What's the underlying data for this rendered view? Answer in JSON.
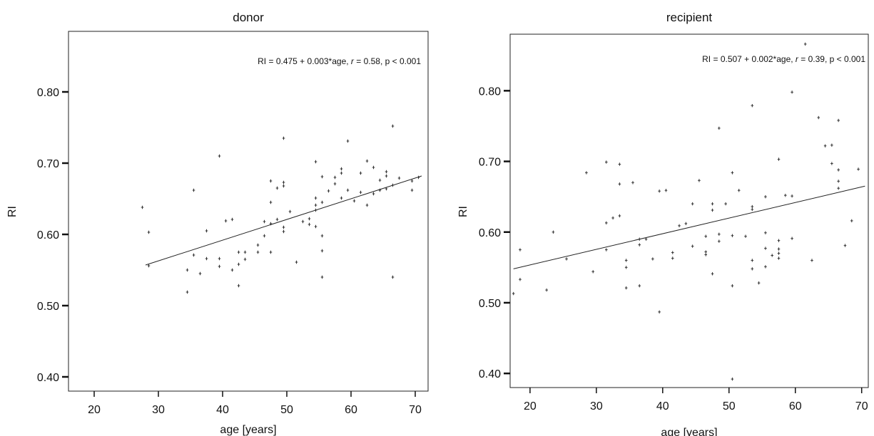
{
  "chart_data": [
    {
      "type": "scatter",
      "title": "donor",
      "xlabel": "age [years]",
      "ylabel": "RI",
      "xlim": [
        16,
        72
      ],
      "ylim": [
        0.38,
        0.885
      ],
      "xticks": [
        20,
        30,
        40,
        50,
        60,
        70
      ],
      "xtick_labels": [
        "20",
        "30",
        "40",
        "50",
        "60",
        "70"
      ],
      "yticks": [
        0.4,
        0.5,
        0.6,
        0.7,
        0.8
      ],
      "ytick_labels": [
        "0.40",
        "0.50",
        "0.60",
        "0.70",
        "0.80"
      ],
      "annotation": {
        "prefix": "RI = 0.475 + 0.003*age, ",
        "r_symbol": "r",
        "suffix": " = 0.58, p < 0.001"
      },
      "fit": {
        "x": [
          28,
          71
        ],
        "y": [
          0.557,
          0.682
        ]
      },
      "points": [
        [
          27.5,
          0.638
        ],
        [
          28.5,
          0.603
        ],
        [
          28.5,
          0.556
        ],
        [
          34.5,
          0.55
        ],
        [
          34.5,
          0.519
        ],
        [
          35.5,
          0.662
        ],
        [
          35.5,
          0.571
        ],
        [
          36.5,
          0.545
        ],
        [
          37.5,
          0.605
        ],
        [
          37.5,
          0.566
        ],
        [
          39.5,
          0.71
        ],
        [
          39.5,
          0.566
        ],
        [
          39.5,
          0.555
        ],
        [
          40.5,
          0.619
        ],
        [
          41.5,
          0.621
        ],
        [
          41.5,
          0.55
        ],
        [
          42.5,
          0.528
        ],
        [
          42.5,
          0.558
        ],
        [
          42.5,
          0.575
        ],
        [
          43.5,
          0.565
        ],
        [
          43.5,
          0.575
        ],
        [
          45.5,
          0.585
        ],
        [
          45.5,
          0.575
        ],
        [
          46.5,
          0.618
        ],
        [
          46.5,
          0.598
        ],
        [
          47.5,
          0.675
        ],
        [
          47.5,
          0.645
        ],
        [
          47.5,
          0.615
        ],
        [
          47.5,
          0.575
        ],
        [
          48.5,
          0.665
        ],
        [
          48.5,
          0.621
        ],
        [
          49.5,
          0.735
        ],
        [
          49.5,
          0.673
        ],
        [
          49.5,
          0.668
        ],
        [
          49.5,
          0.61
        ],
        [
          49.5,
          0.604
        ],
        [
          50.5,
          0.632
        ],
        [
          51.5,
          0.561
        ],
        [
          52.5,
          0.618
        ],
        [
          53.5,
          0.622
        ],
        [
          53.5,
          0.614
        ],
        [
          54.5,
          0.702
        ],
        [
          54.5,
          0.651
        ],
        [
          54.5,
          0.641
        ],
        [
          54.5,
          0.634
        ],
        [
          54.5,
          0.611
        ],
        [
          55.5,
          0.681
        ],
        [
          55.5,
          0.598
        ],
        [
          55.5,
          0.577
        ],
        [
          55.5,
          0.54
        ],
        [
          55.5,
          0.645
        ],
        [
          56.5,
          0.661
        ],
        [
          57.5,
          0.68
        ],
        [
          57.5,
          0.671
        ],
        [
          58.5,
          0.692
        ],
        [
          58.5,
          0.686
        ],
        [
          58.5,
          0.651
        ],
        [
          59.5,
          0.731
        ],
        [
          59.5,
          0.662
        ],
        [
          60.5,
          0.647
        ],
        [
          61.5,
          0.686
        ],
        [
          61.5,
          0.659
        ],
        [
          62.5,
          0.703
        ],
        [
          62.5,
          0.641
        ],
        [
          63.5,
          0.694
        ],
        [
          63.5,
          0.657
        ],
        [
          64.5,
          0.676
        ],
        [
          64.5,
          0.662
        ],
        [
          65.5,
          0.688
        ],
        [
          65.5,
          0.682
        ],
        [
          65.5,
          0.664
        ],
        [
          66.5,
          0.752
        ],
        [
          66.5,
          0.669
        ],
        [
          66.5,
          0.54
        ],
        [
          67.5,
          0.679
        ],
        [
          69.5,
          0.675
        ],
        [
          69.5,
          0.662
        ],
        [
          70.5,
          0.68
        ]
      ]
    },
    {
      "type": "scatter",
      "title": "recipient",
      "xlabel": "age [years]",
      "ylabel": "RI",
      "xlim": [
        17,
        71
      ],
      "ylim": [
        0.38,
        0.88
      ],
      "xticks": [
        20,
        30,
        40,
        50,
        60,
        70
      ],
      "xtick_labels": [
        "20",
        "30",
        "40",
        "50",
        "60",
        "70"
      ],
      "yticks": [
        0.4,
        0.5,
        0.6,
        0.7,
        0.8
      ],
      "ytick_labels": [
        "0.40",
        "0.50",
        "0.60",
        "0.70",
        "0.80"
      ],
      "annotation": {
        "prefix": "RI = 0.507 + 0.002*age, ",
        "r_symbol": "r",
        "suffix": " = 0.39, p < 0.001"
      },
      "fit": {
        "x": [
          17.5,
          70.5
        ],
        "y": [
          0.548,
          0.665
        ]
      },
      "points": [
        [
          17.5,
          0.513
        ],
        [
          18.5,
          0.575
        ],
        [
          18.5,
          0.533
        ],
        [
          22.5,
          0.518
        ],
        [
          23.5,
          0.6
        ],
        [
          25.5,
          0.562
        ],
        [
          28.5,
          0.684
        ],
        [
          29.5,
          0.544
        ],
        [
          31.5,
          0.699
        ],
        [
          31.5,
          0.613
        ],
        [
          31.5,
          0.575
        ],
        [
          32.5,
          0.62
        ],
        [
          33.5,
          0.696
        ],
        [
          33.5,
          0.668
        ],
        [
          33.5,
          0.623
        ],
        [
          34.5,
          0.56
        ],
        [
          34.5,
          0.55
        ],
        [
          34.5,
          0.521
        ],
        [
          35.5,
          0.67
        ],
        [
          36.5,
          0.59
        ],
        [
          36.5,
          0.582
        ],
        [
          36.5,
          0.524
        ],
        [
          37.5,
          0.59
        ],
        [
          38.5,
          0.562
        ],
        [
          39.5,
          0.658
        ],
        [
          39.5,
          0.487
        ],
        [
          40.5,
          0.659
        ],
        [
          41.5,
          0.571
        ],
        [
          41.5,
          0.563
        ],
        [
          42.5,
          0.609
        ],
        [
          43.5,
          0.612
        ],
        [
          44.5,
          0.64
        ],
        [
          44.5,
          0.58
        ],
        [
          45.5,
          0.673
        ],
        [
          46.5,
          0.594
        ],
        [
          46.5,
          0.572
        ],
        [
          46.5,
          0.568
        ],
        [
          47.5,
          0.64
        ],
        [
          47.5,
          0.631
        ],
        [
          47.5,
          0.541
        ],
        [
          48.5,
          0.747
        ],
        [
          48.5,
          0.597
        ],
        [
          48.5,
          0.587
        ],
        [
          49.5,
          0.64
        ],
        [
          50.5,
          0.684
        ],
        [
          50.5,
          0.595
        ],
        [
          50.5,
          0.524
        ],
        [
          50.5,
          0.392
        ],
        [
          51.5,
          0.659
        ],
        [
          52.5,
          0.594
        ],
        [
          53.5,
          0.779
        ],
        [
          53.5,
          0.636
        ],
        [
          53.5,
          0.632
        ],
        [
          53.5,
          0.56
        ],
        [
          53.5,
          0.548
        ],
        [
          54.5,
          0.528
        ],
        [
          55.5,
          0.65
        ],
        [
          55.5,
          0.599
        ],
        [
          55.5,
          0.577
        ],
        [
          55.5,
          0.551
        ],
        [
          56.5,
          0.567
        ],
        [
          57.5,
          0.703
        ],
        [
          57.5,
          0.588
        ],
        [
          57.5,
          0.576
        ],
        [
          57.5,
          0.57
        ],
        [
          57.5,
          0.563
        ],
        [
          58.5,
          0.652
        ],
        [
          59.5,
          0.798
        ],
        [
          59.5,
          0.651
        ],
        [
          59.5,
          0.591
        ],
        [
          61.5,
          0.866
        ],
        [
          62.5,
          0.56
        ],
        [
          63.5,
          0.762
        ],
        [
          64.5,
          0.722
        ],
        [
          65.5,
          0.723
        ],
        [
          65.5,
          0.697
        ],
        [
          66.5,
          0.758
        ],
        [
          66.5,
          0.688
        ],
        [
          66.5,
          0.672
        ],
        [
          66.5,
          0.662
        ],
        [
          67.5,
          0.581
        ],
        [
          68.5,
          0.616
        ],
        [
          69.5,
          0.689
        ]
      ]
    }
  ]
}
